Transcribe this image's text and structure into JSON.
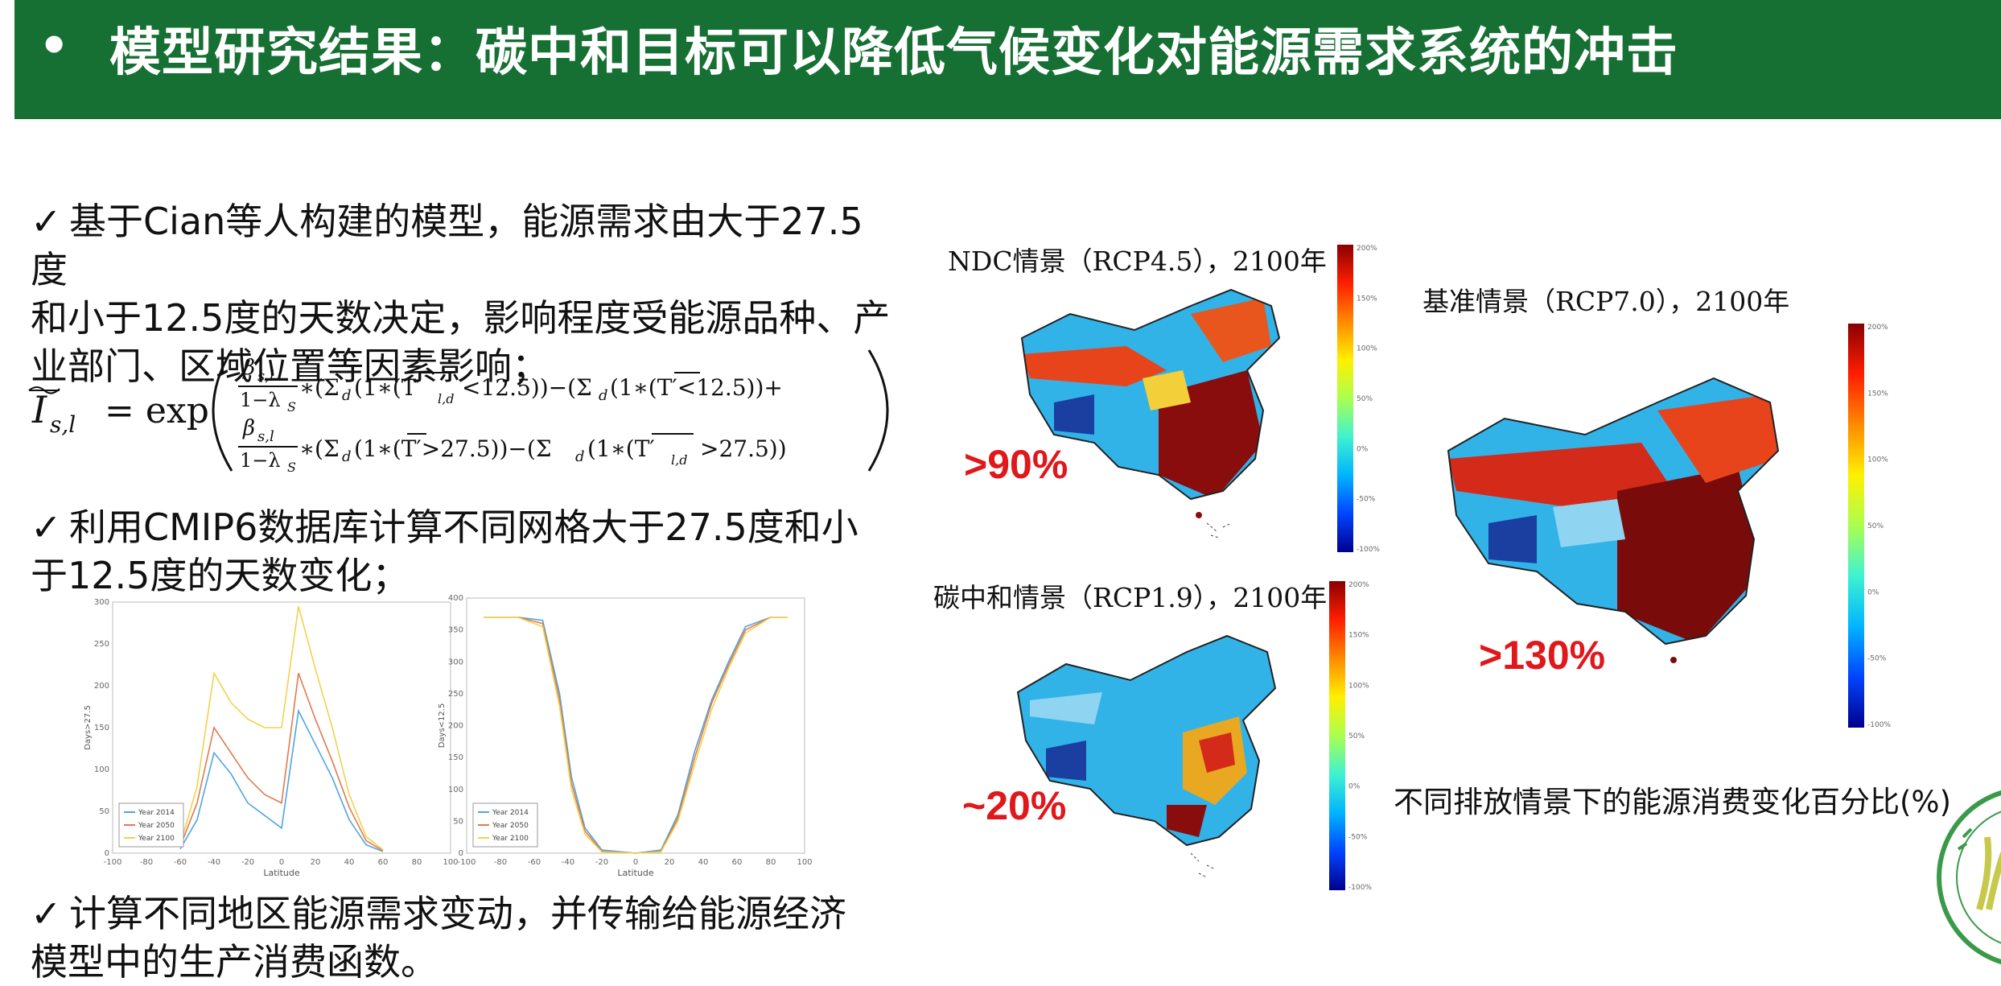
{
  "header": {
    "bullet": "•",
    "title": "模型研究结果：碳中和目标可以降低气候变化对能源需求系统的冲击"
  },
  "check_mark": "✓",
  "paragraphs": {
    "p1_l1": "基于Cian等人构建的模型，能源需求由大于27.5度",
    "p1_l2": "和小于12.5度的天数决定，影响程度受能源品种、产",
    "p1_l3": "业部门、区域位置等因素影响；",
    "p2_l1": "利用CMIP6数据库计算不同网格大于27.5度和小",
    "p2_l2": "于12.5度的天数变化；",
    "p3_l1": "计算不同地区能源需求变动，并传输给能源经济",
    "p3_l2": "模型中的生产消费函数。"
  },
  "formula": {
    "lhs": "I",
    "lhs_sub": "s,l",
    "eq": "= exp",
    "frac_num": "β",
    "frac_num_sub": "s,l",
    "frac_den": "1−λ",
    "frac_den_sub": "S",
    "row1_a": "∗(Σ",
    "row1_b": "(1∗(T′",
    "row1_c": "<12.5))−(Σ",
    "row1_d": "(1∗(T′<12.5))+",
    "row2_a": "∗(Σ",
    "row2_b": "(1∗(T′>27.5))−(Σ",
    "row2_c": "(1∗(T′",
    "row2_d": ">27.5))",
    "sub_d": "d",
    "sub_ld": "l,d"
  },
  "chart_data": [
    {
      "type": "line",
      "ylabel": "Days>27.5",
      "xlabel": "Latitude",
      "xlim": [
        -100,
        100
      ],
      "ylim": [
        0,
        300
      ],
      "xticks": [
        "-100",
        "-80",
        "-60",
        "-40",
        "-20",
        "0",
        "20",
        "40",
        "60",
        "80",
        "100"
      ],
      "yticks": [
        "0",
        "50",
        "100",
        "150",
        "200",
        "250",
        "300"
      ],
      "legend": [
        "Year 2014",
        "Year 2050",
        "Year 2100"
      ],
      "legend_position": "lower-left",
      "x": [
        -60,
        -50,
        -40,
        -30,
        -20,
        -10,
        0,
        10,
        20,
        30,
        40,
        50,
        60
      ],
      "series": [
        {
          "name": "Year 2014",
          "color": "#4da6e0",
          "values": [
            5,
            40,
            120,
            95,
            60,
            45,
            30,
            170,
            130,
            90,
            40,
            10,
            2
          ]
        },
        {
          "name": "Year 2050",
          "color": "#e07b4d",
          "values": [
            8,
            60,
            150,
            120,
            90,
            70,
            60,
            215,
            160,
            110,
            55,
            15,
            3
          ]
        },
        {
          "name": "Year 2100",
          "color": "#f2d24b",
          "values": [
            10,
            80,
            215,
            180,
            160,
            150,
            150,
            295,
            220,
            150,
            70,
            20,
            4
          ]
        }
      ]
    },
    {
      "type": "line",
      "ylabel": "Days<12.5",
      "xlabel": "Latitude",
      "xlim": [
        -100,
        100
      ],
      "ylim": [
        0,
        400
      ],
      "xticks": [
        "-100",
        "-80",
        "-60",
        "-40",
        "-20",
        "0",
        "20",
        "40",
        "60",
        "80",
        "100"
      ],
      "yticks": [
        "0",
        "50",
        "100",
        "150",
        "200",
        "250",
        "300",
        "350",
        "400"
      ],
      "legend": [
        "Year 2014",
        "Year 2050",
        "Year 2100"
      ],
      "legend_position": "lower-left",
      "x": [
        -90,
        -70,
        -55,
        -45,
        -38,
        -30,
        -20,
        0,
        15,
        25,
        35,
        45,
        55,
        65,
        80,
        90
      ],
      "series": [
        {
          "name": "Year 2014",
          "color": "#4da6e0",
          "values": [
            370,
            370,
            365,
            250,
            120,
            40,
            5,
            0,
            5,
            60,
            160,
            240,
            300,
            355,
            370,
            370
          ]
        },
        {
          "name": "Year 2050",
          "color": "#e07b4d",
          "values": [
            370,
            370,
            360,
            240,
            110,
            35,
            3,
            0,
            3,
            55,
            150,
            235,
            295,
            350,
            370,
            370
          ]
        },
        {
          "name": "Year 2100",
          "color": "#f2d24b",
          "values": [
            370,
            370,
            355,
            230,
            100,
            30,
            2,
            0,
            2,
            50,
            140,
            225,
            290,
            345,
            370,
            370
          ]
        }
      ]
    }
  ],
  "maps": {
    "ndc": {
      "label": "NDC情景（RCP4.5），2100年",
      "pct": ">90%"
    },
    "base": {
      "label": "基准情景（RCP7.0），2100年",
      "pct": ">130%"
    },
    "cn": {
      "label": "碳中和情景（RCP1.9），2100年",
      "pct": "~20%"
    }
  },
  "colorbar_ticks": [
    "200%",
    "150%",
    "100%",
    "50%",
    "0%",
    "-50%",
    "-100%"
  ],
  "caption": "不同排放情景下的能源消费变化百分比(%)",
  "colors": {
    "header_green": "#166f33",
    "highlight_red": "#e0181c"
  }
}
